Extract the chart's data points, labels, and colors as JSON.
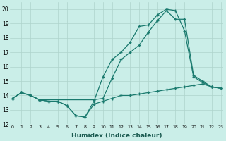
{
  "xlabel": "Humidex (Indice chaleur)",
  "bg_color": "#caeee8",
  "grid_color": "#aed4cc",
  "line_color": "#1a7a6e",
  "xlim": [
    -0.3,
    23.3
  ],
  "ylim": [
    12,
    20.5
  ],
  "yticks": [
    12,
    13,
    14,
    15,
    16,
    17,
    18,
    19,
    20
  ],
  "xticks": [
    0,
    1,
    2,
    3,
    4,
    5,
    6,
    7,
    8,
    9,
    10,
    11,
    12,
    13,
    14,
    15,
    16,
    17,
    18,
    19,
    20,
    21,
    22,
    23
  ],
  "line1_x": [
    0,
    1,
    2,
    3,
    4,
    5,
    6,
    7,
    8,
    9,
    10,
    11,
    12,
    13,
    14,
    15,
    16,
    17,
    18,
    19,
    20,
    21,
    22,
    23
  ],
  "line1_y": [
    13.8,
    14.2,
    14.0,
    13.7,
    13.6,
    13.6,
    13.3,
    12.6,
    12.5,
    13.6,
    15.3,
    16.5,
    17.0,
    17.7,
    18.8,
    18.9,
    19.6,
    20.0,
    19.9,
    18.5,
    15.3,
    14.9,
    14.6,
    14.5
  ],
  "line2_x": [
    0,
    1,
    2,
    3,
    4,
    5,
    6,
    7,
    8,
    9,
    10,
    11,
    12,
    13,
    14,
    15,
    16,
    17,
    18,
    19,
    20,
    21,
    22,
    23
  ],
  "line2_y": [
    13.8,
    14.2,
    14.0,
    13.7,
    13.6,
    13.6,
    13.3,
    12.6,
    12.5,
    13.4,
    13.6,
    13.8,
    14.0,
    14.0,
    14.1,
    14.2,
    14.3,
    14.4,
    14.5,
    14.6,
    14.7,
    14.8,
    14.6,
    14.5
  ],
  "line3_x": [
    0,
    1,
    2,
    3,
    9,
    10,
    11,
    12,
    13,
    14,
    15,
    16,
    17,
    18,
    19,
    20,
    21,
    22,
    23
  ],
  "line3_y": [
    13.8,
    14.2,
    14.0,
    13.7,
    13.7,
    13.8,
    15.2,
    16.5,
    17.0,
    17.5,
    18.4,
    19.2,
    19.9,
    19.3,
    19.3,
    15.4,
    15.0,
    14.6,
    14.5
  ]
}
